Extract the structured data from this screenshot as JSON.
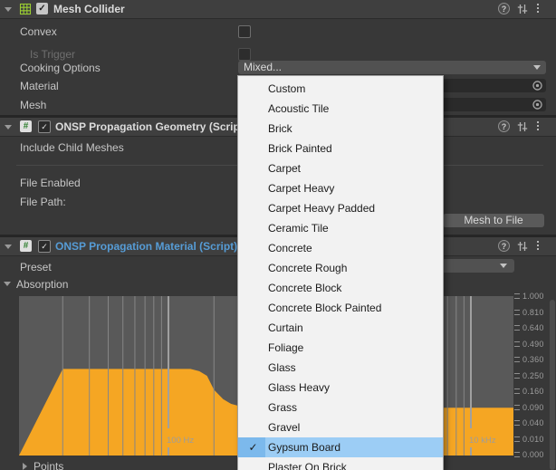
{
  "colors": {
    "accent_orange": "#f5a623",
    "menu_highlight_main": "#9ccdf5",
    "menu_highlight_gutter": "#7cb9ec",
    "material_title_blue": "#569cd6",
    "grid_icon_green": "#9acd32",
    "graph_background": "#595959",
    "gridline_gray": "#868686"
  },
  "icons": {
    "help_glyph": "?",
    "script_glyph": "#",
    "check_glyph": "✓"
  },
  "mesh_collider": {
    "title": "Mesh Collider",
    "enabled": true,
    "convex_label": "Convex",
    "is_trigger_label": "Is Trigger",
    "cooking_options_label": "Cooking Options",
    "cooking_options_value": "Mixed...",
    "material_label": "Material",
    "mesh_label": "Mesh"
  },
  "propagation_geometry": {
    "title": "ONSP Propagation Geometry (Script)",
    "enabled": true,
    "include_child_meshes_label": "Include Child Meshes",
    "file_enabled_label": "File Enabled",
    "file_path_label": "File Path:",
    "write_button_label": "Mesh to File"
  },
  "propagation_material": {
    "title": "ONSP Propagation Material (Script)",
    "enabled": true,
    "preset_label": "Preset",
    "absorption_label": "Absorption",
    "points_label": "Points"
  },
  "preset_menu": {
    "items": [
      {
        "label": "Custom",
        "checked": false,
        "highlighted": false
      },
      {
        "label": "Acoustic Tile",
        "checked": false,
        "highlighted": false
      },
      {
        "label": "Brick",
        "checked": false,
        "highlighted": false
      },
      {
        "label": "Brick Painted",
        "checked": false,
        "highlighted": false
      },
      {
        "label": "Carpet",
        "checked": false,
        "highlighted": false
      },
      {
        "label": "Carpet Heavy",
        "checked": false,
        "highlighted": false
      },
      {
        "label": "Carpet Heavy Padded",
        "checked": false,
        "highlighted": false
      },
      {
        "label": "Ceramic Tile",
        "checked": false,
        "highlighted": false
      },
      {
        "label": "Concrete",
        "checked": false,
        "highlighted": false
      },
      {
        "label": "Concrete Rough",
        "checked": false,
        "highlighted": false
      },
      {
        "label": "Concrete Block",
        "checked": false,
        "highlighted": false
      },
      {
        "label": "Concrete Block Painted",
        "checked": false,
        "highlighted": false
      },
      {
        "label": "Curtain",
        "checked": false,
        "highlighted": false
      },
      {
        "label": "Foliage",
        "checked": false,
        "highlighted": false
      },
      {
        "label": "Glass",
        "checked": false,
        "highlighted": false
      },
      {
        "label": "Glass Heavy",
        "checked": false,
        "highlighted": false
      },
      {
        "label": "Grass",
        "checked": false,
        "highlighted": false
      },
      {
        "label": "Gravel",
        "checked": false,
        "highlighted": false
      },
      {
        "label": "Gypsum Board",
        "checked": true,
        "highlighted": true
      },
      {
        "label": "Plaster On Brick",
        "checked": false,
        "highlighted": false
      }
    ]
  },
  "chart_data": {
    "type": "area",
    "title": "Absorption",
    "x_axis": {
      "scale": "log",
      "unit": "Hz",
      "range": [
        20,
        20000
      ],
      "gridline_frequencies": [
        20,
        30,
        40,
        50,
        60,
        70,
        80,
        90,
        100,
        200,
        300,
        400,
        500,
        600,
        700,
        800,
        900,
        1000,
        2000,
        3000,
        4000,
        5000,
        6000,
        7000,
        8000,
        9000,
        10000
      ],
      "labeled_ticks": [
        {
          "frequency": 100,
          "label": "100 Hz"
        },
        {
          "frequency": 10000,
          "label": "10 kHz"
        }
      ]
    },
    "y_axis": {
      "scale": "sqrt",
      "range": [
        0,
        1
      ],
      "tick_labels": [
        "1.000",
        "0.810",
        "0.640",
        "0.490",
        "0.360",
        "0.250",
        "0.160",
        "0.090",
        "0.040",
        "0.010",
        "0.000"
      ]
    },
    "series": [
      {
        "name": "absorption-curve",
        "points": [
          [
            20,
            0.295
          ],
          [
            140,
            0.295
          ],
          [
            160,
            0.28
          ],
          [
            180,
            0.25
          ],
          [
            200,
            0.17
          ],
          [
            230,
            0.125
          ],
          [
            260,
            0.105
          ],
          [
            300,
            0.095
          ],
          [
            400,
            0.09
          ],
          [
            20000,
            0.09
          ]
        ]
      }
    ],
    "legend": "none",
    "grid": true
  }
}
